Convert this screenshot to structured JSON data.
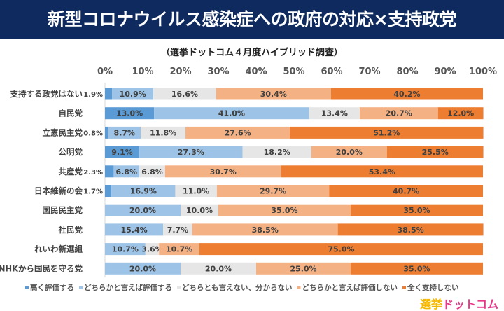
{
  "chart_data": {
    "type": "bar",
    "orientation": "horizontal-stacked-100",
    "title": "新型コロナウイルス感染症への政府の対応×支持政党",
    "subtitle": "（選挙ドットコム４月度ハイブリッド調査）",
    "xlim": [
      0,
      100
    ],
    "xticks": [
      "0%",
      "10%",
      "20%",
      "30%",
      "40%",
      "50%",
      "60%",
      "70%",
      "80%",
      "90%",
      "100%"
    ],
    "categories": [
      "支持する政党はない",
      "自民党",
      "立憲民主党",
      "公明党",
      "共産党",
      "日本維新の会",
      "国民民主党",
      "社民党",
      "れいわ新選組",
      "NHKから国民を守る党"
    ],
    "series": [
      {
        "name": "高く評価する",
        "color": "#5b9bd5",
        "values": [
          1.9,
          13.0,
          0.8,
          9.1,
          2.3,
          1.7,
          0,
          0,
          0,
          0
        ]
      },
      {
        "name": "どちらかと言えば評価する",
        "color": "#9dc3e6",
        "values": [
          10.9,
          41.0,
          8.7,
          27.3,
          6.8,
          16.9,
          20.0,
          15.4,
          10.7,
          20.0
        ]
      },
      {
        "name": "どちらとも言えない、分からない",
        "color": "#e7e6e6",
        "values": [
          16.6,
          13.4,
          11.8,
          18.2,
          6.8,
          11.0,
          10.0,
          7.7,
          3.6,
          20.0
        ]
      },
      {
        "name": "どちらかと言えば評価しない",
        "color": "#f4b183",
        "values": [
          30.4,
          20.7,
          27.6,
          20.0,
          30.7,
          29.7,
          35.0,
          38.5,
          10.7,
          25.0
        ]
      },
      {
        "name": "全く支持しない",
        "color": "#ed7d31",
        "values": [
          40.2,
          12.0,
          51.2,
          25.5,
          53.4,
          40.7,
          35.0,
          38.5,
          75.0,
          35.0
        ]
      }
    ],
    "legend_position": "bottom"
  },
  "logo": {
    "part1": "選挙",
    "part2": "ドットコム"
  }
}
